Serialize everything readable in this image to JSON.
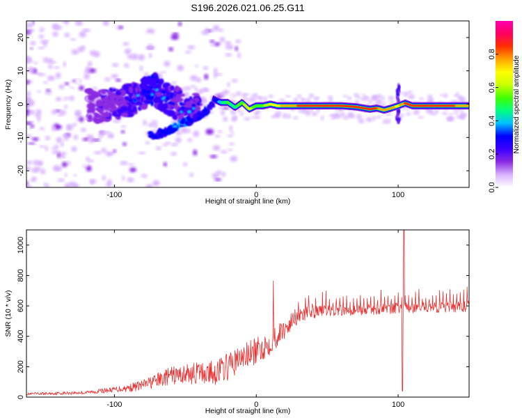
{
  "title": "S196.2026.021.06.25.G11",
  "chart_data": [
    {
      "type": "heatmap",
      "title": "S196.2026.021.06.25.G11",
      "xlabel": "Height of straight line (km)",
      "ylabel": "Frequency (Hz)",
      "xlim": [
        -162,
        150
      ],
      "ylim": [
        -25,
        25
      ],
      "xticks": [
        -100,
        0,
        100
      ],
      "yticks": [
        -20,
        -10,
        0,
        10,
        20
      ],
      "colorbar": {
        "label": "Normalized spectral amplitude",
        "range": [
          0.0,
          1.0
        ],
        "ticks": [
          0.0,
          0.2,
          0.4,
          0.6,
          0.8
        ],
        "tick_labels": [
          "0.0",
          "0.2",
          "0.4",
          "0.6",
          "0.8"
        ],
        "colors": [
          "#ffffff",
          "#d9b3ff",
          "#8a2be2",
          "#3b00ff",
          "#0000ff",
          "#00c0ff",
          "#00ff80",
          "#40ff00",
          "#c8ff00",
          "#ffff00",
          "#ffa500",
          "#ff3000",
          "#ff0060",
          "#ff00b0"
        ]
      },
      "ridge": {
        "x": [
          -30,
          -25,
          -20,
          -15,
          -10,
          -5,
          0,
          5,
          10,
          15,
          20,
          30,
          40,
          50,
          60,
          70,
          80,
          85,
          90,
          95,
          100,
          105,
          110,
          120,
          130,
          140,
          150
        ],
        "freq": [
          1.5,
          0.5,
          0.5,
          -1.0,
          0.5,
          -1.5,
          -0.5,
          -0.5,
          0.0,
          -0.5,
          -0.5,
          -0.5,
          -0.5,
          -0.5,
          -0.5,
          -0.8,
          -1.5,
          -1.2,
          -1.8,
          -1.2,
          -0.5,
          0.3,
          -0.5,
          -0.5,
          -0.5,
          -0.5,
          -0.5
        ],
        "amplitude": [
          0.3,
          0.45,
          0.55,
          0.5,
          0.6,
          0.7,
          0.55,
          0.6,
          0.7,
          0.75,
          0.8,
          0.85,
          0.85,
          0.85,
          0.85,
          0.85,
          0.85,
          0.85,
          0.8,
          0.8,
          0.75,
          0.85,
          0.85,
          0.85,
          0.85,
          0.85,
          0.8
        ]
      },
      "branch": {
        "x": [
          -75,
          -65,
          -55,
          -45,
          -35,
          -30
        ],
        "freq": [
          -9.5,
          -8.5,
          -6.5,
          -4.5,
          -2,
          0.5
        ],
        "amplitude": [
          0.25,
          0.3,
          0.35,
          0.3,
          0.3,
          0.3
        ]
      },
      "core": {
        "x": [
          -120,
          -110,
          -100,
          -90,
          -80,
          -75,
          -70,
          -65,
          -60,
          -55,
          -50,
          -45,
          -40
        ],
        "freq": [
          0,
          -1,
          0,
          1,
          3,
          5,
          4,
          2,
          1,
          0,
          -2,
          -1,
          0
        ],
        "amplitude": [
          0.12,
          0.14,
          0.15,
          0.18,
          0.2,
          0.25,
          0.22,
          0.2,
          0.18,
          0.15,
          0.2,
          0.18,
          0.15
        ]
      },
      "spike": {
        "x": 100,
        "freq_range": [
          -6,
          6
        ]
      }
    },
    {
      "type": "line",
      "title": "",
      "xlabel": "Height of straight line (km)",
      "ylabel": "SNR (10 * v/v)",
      "xlim": [
        -162,
        150
      ],
      "ylim": [
        0,
        1100
      ],
      "xticks": [
        -100,
        0,
        100
      ],
      "yticks": [
        0,
        200,
        400,
        600,
        800,
        1000
      ],
      "color": "#e82f2f",
      "trend": {
        "x": [
          -162,
          -140,
          -120,
          -100,
          -90,
          -80,
          -70,
          -60,
          -50,
          -40,
          -30,
          -20,
          -10,
          0,
          10,
          20,
          30,
          40,
          60,
          80,
          100,
          120,
          140,
          150
        ],
        "snr": [
          20,
          25,
          30,
          50,
          60,
          80,
          110,
          140,
          150,
          160,
          160,
          200,
          260,
          300,
          360,
          450,
          540,
          560,
          570,
          575,
          585,
          590,
          590,
          595
        ]
      },
      "noise": {
        "x": [
          -162,
          -120,
          -100,
          -80,
          -60,
          -40,
          -20,
          0,
          20,
          40,
          60,
          100,
          150
        ],
        "amp": [
          8,
          12,
          18,
          35,
          60,
          75,
          90,
          90,
          70,
          40,
          35,
          35,
          40
        ]
      },
      "events": [
        {
          "x": 12,
          "snr": 765
        },
        {
          "x": 104,
          "snr": 1100
        },
        {
          "x": 103,
          "snr": 40
        }
      ]
    }
  ]
}
